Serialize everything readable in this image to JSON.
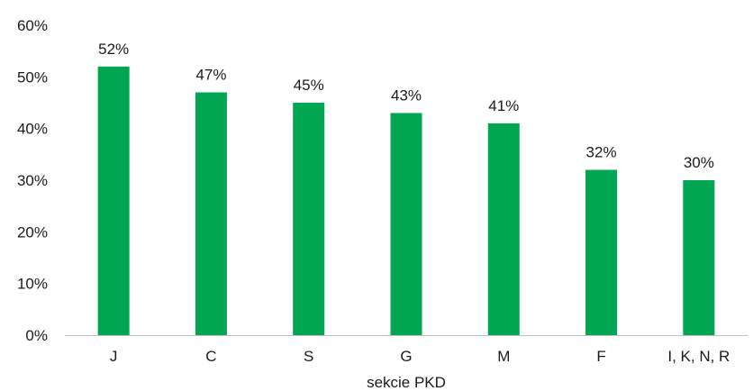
{
  "chart_data": {
    "type": "bar",
    "categories": [
      "J",
      "C",
      "S",
      "G",
      "M",
      "F",
      "I, K, N, R"
    ],
    "values": [
      52,
      47,
      45,
      43,
      41,
      32,
      30
    ],
    "data_labels": [
      "52%",
      "47%",
      "45%",
      "43%",
      "41%",
      "32%",
      "30%"
    ],
    "title": "",
    "xlabel": "sekcie PKD",
    "ylabel": "",
    "ylim": [
      0,
      60
    ],
    "yticks": [
      0,
      10,
      20,
      30,
      40,
      50,
      60
    ],
    "ytick_labels": [
      "0%",
      "10%",
      "20%",
      "30%",
      "40%",
      "50%",
      "60%"
    ],
    "grid": false,
    "legend": "none",
    "bar_color": "#00a651",
    "axis_color": "#bfbfbf"
  }
}
